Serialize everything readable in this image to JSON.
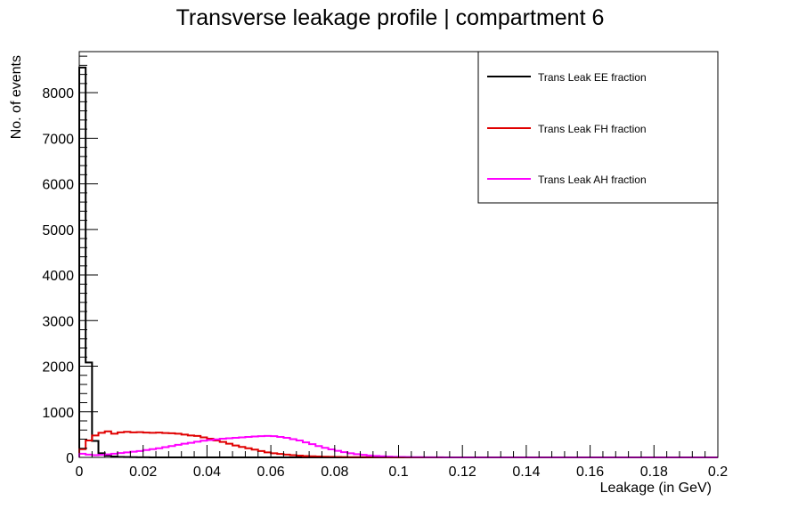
{
  "chart_data": {
    "type": "line",
    "title": "Transverse leakage profile | compartment 6",
    "xlabel": "Leakage (in GeV)",
    "ylabel": "No. of events",
    "xlim": [
      0,
      0.2
    ],
    "ylim": [
      0,
      8900
    ],
    "bin_width": 0.002,
    "x_ticks": [
      0,
      0.02,
      0.04,
      0.06,
      0.08,
      0.1,
      0.12,
      0.14,
      0.16,
      0.18,
      0.2
    ],
    "x_tick_labels": [
      "0",
      "0.02",
      "0.04",
      "0.06",
      "0.08",
      "0.1",
      "0.12",
      "0.14",
      "0.16",
      "0.18",
      "0.2"
    ],
    "y_ticks": [
      0,
      1000,
      2000,
      3000,
      4000,
      5000,
      6000,
      7000,
      8000
    ],
    "y_tick_labels": [
      "0",
      "1000",
      "2000",
      "3000",
      "4000",
      "5000",
      "6000",
      "7000",
      "8000"
    ],
    "grid": false,
    "legend_position": "top-right",
    "series": [
      {
        "name": "Trans Leak EE fraction",
        "color": "#000000",
        "values": [
          8550,
          2080,
          360,
          90,
          40,
          20,
          10,
          8,
          5,
          3,
          2,
          1
        ]
      },
      {
        "name": "Trans Leak FH fraction",
        "color": "#e00000",
        "values": [
          180,
          370,
          480,
          540,
          570,
          520,
          550,
          560,
          550,
          555,
          545,
          540,
          545,
          535,
          530,
          520,
          500,
          480,
          470,
          440,
          410,
          370,
          340,
          300,
          260,
          230,
          200,
          170,
          140,
          110,
          90,
          75,
          60,
          50,
          40,
          30,
          25,
          20,
          15,
          12,
          10,
          8,
          6,
          5,
          4,
          3,
          2,
          2,
          1,
          1
        ]
      },
      {
        "name": "Trans Leak AH fraction",
        "color": "#ff00ff",
        "values": [
          80,
          60,
          50,
          55,
          65,
          80,
          95,
          110,
          125,
          140,
          160,
          180,
          200,
          225,
          250,
          275,
          300,
          320,
          345,
          365,
          380,
          395,
          410,
          420,
          430,
          440,
          450,
          458,
          465,
          470,
          465,
          450,
          430,
          400,
          370,
          330,
          290,
          250,
          210,
          175,
          145,
          115,
          90,
          70,
          55,
          42,
          32,
          25,
          18,
          13,
          10,
          7,
          5,
          4,
          3,
          2,
          2,
          1
        ]
      }
    ]
  }
}
